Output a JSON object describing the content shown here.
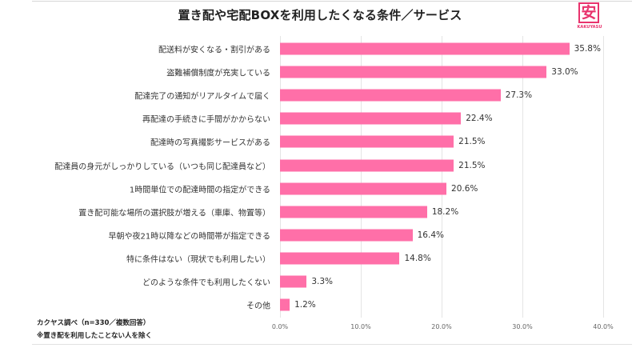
{
  "header": {
    "title": "置き配や宅配BOXを利用したくなる条件／サービス",
    "logo_glyph": "安",
    "logo_text": "KAKUYASU",
    "brand_color": "#e8336d"
  },
  "notes": {
    "source": "カクヤス調べ（n=330／複数回答）",
    "footnote": "※置き配を利用したことない人を除く"
  },
  "chart_data": {
    "type": "bar",
    "orientation": "horizontal",
    "title": "置き配や宅配BOXを利用したくなる条件／サービス",
    "xlabel": "",
    "ylabel": "",
    "xlim": [
      0,
      40
    ],
    "grid": true,
    "bar_color": "#ff6fa8",
    "categories": [
      "配送料が安くなる・割引がある",
      "盗難補償制度が充実している",
      "配達完了の通知がリアルタイムで届く",
      "再配達の手続きに手間がかからない",
      "配達時の写真撮影サービスがある",
      "配達員の身元がしっかりしている（いつも同じ配達員など）",
      "1時間単位での配達時間の指定ができる",
      "置き配可能な場所の選択肢が増える（車庫、物置等）",
      "早朝や夜21時以降などの時間帯が指定できる",
      "特に条件はない（現状でも利用したい）",
      "どのような条件でも利用したくない",
      "その他"
    ],
    "values": [
      35.8,
      33.0,
      27.3,
      22.4,
      21.5,
      21.5,
      20.6,
      18.2,
      16.4,
      14.8,
      3.3,
      1.2
    ],
    "value_labels": [
      "35.8%",
      "33.0%",
      "27.3%",
      "22.4%",
      "21.5%",
      "21.5%",
      "20.6%",
      "18.2%",
      "16.4%",
      "14.8%",
      "3.3%",
      "1.2%"
    ],
    "ticks": [
      0,
      10,
      20,
      30,
      40
    ],
    "tick_labels": [
      "0.0%",
      "10.0%",
      "20.0%",
      "30.0%",
      "40.0%"
    ]
  }
}
